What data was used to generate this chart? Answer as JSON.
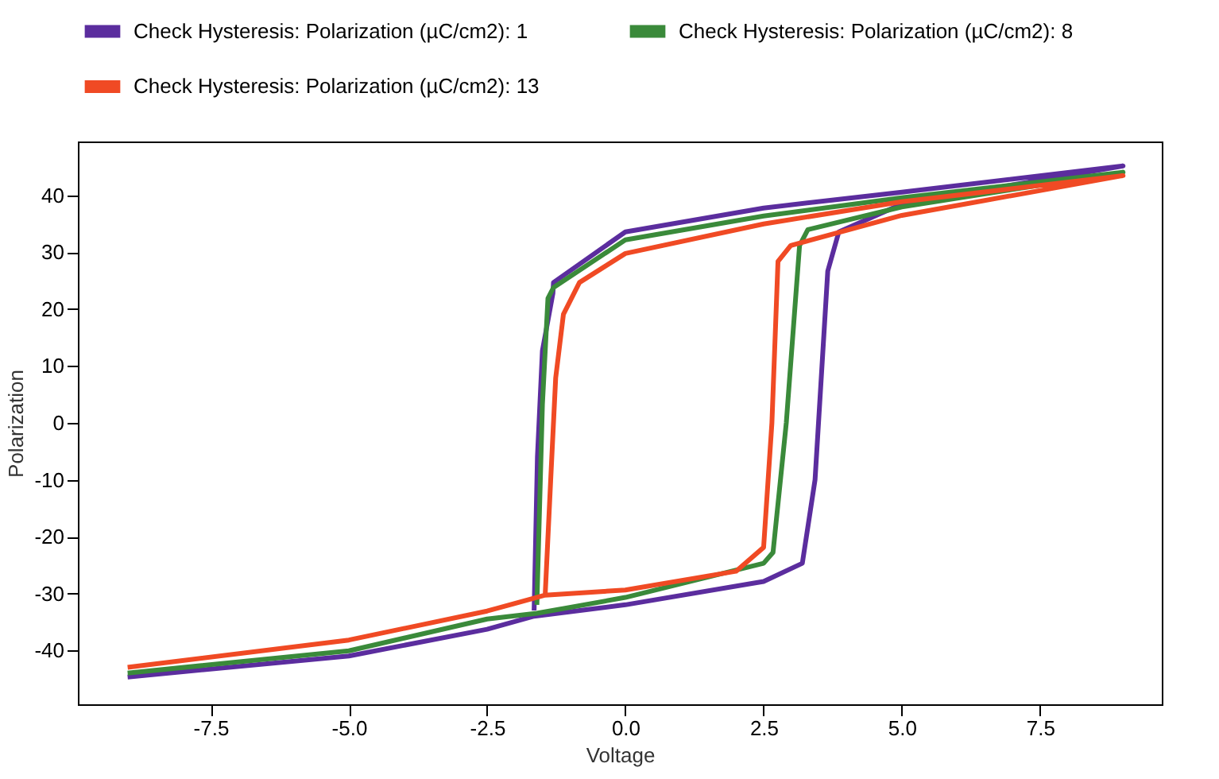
{
  "chart_data": {
    "type": "line",
    "xlabel": "Voltage",
    "ylabel": "Polarization",
    "legend": "top",
    "grid": false,
    "xlim": [
      -9.9,
      9.7
    ],
    "ylim": [
      -49.5,
      49.5
    ],
    "xticks": [
      {
        "value": -7.5,
        "label": "-7.5"
      },
      {
        "value": -5,
        "label": "-5.0"
      },
      {
        "value": -2.5,
        "label": "-2.5"
      },
      {
        "value": 0,
        "label": "0.0"
      },
      {
        "value": 2.5,
        "label": "2.5"
      },
      {
        "value": 5,
        "label": "5.0"
      },
      {
        "value": 7.5,
        "label": "7.5"
      }
    ],
    "yticks": [
      -40,
      -30,
      -20,
      -10,
      0,
      10,
      20,
      30,
      40
    ],
    "series": [
      {
        "name": "Check Hysteresis: Polarization (µC/cm2): 1",
        "color": "#5b2d9e",
        "x": [
          -9,
          -5,
          -2.5,
          -1.65,
          0,
          2.5,
          3.2,
          3.43,
          3.66,
          3.86,
          5,
          9,
          5,
          2.5,
          0,
          -1.3,
          -1.31,
          -1.5,
          -1.59,
          -1.65
        ],
        "values": [
          -44.7,
          -41,
          -36.3,
          -34,
          -32,
          -27.9,
          -24.7,
          -10,
          26.7,
          33.6,
          38.5,
          45.2,
          40.6,
          37.8,
          33.6,
          24.7,
          22.8,
          12.7,
          -6,
          -33
        ]
      },
      {
        "name": "Check Hysteresis: Polarization (µC/cm2): 8",
        "color": "#3a8a3a",
        "x": [
          -9,
          -5,
          -2.5,
          -1.6,
          0,
          2.5,
          2.67,
          2.91,
          3.15,
          3.3,
          5,
          9,
          5,
          2.5,
          0,
          -1.3,
          -1.4,
          -1.5,
          -1.6
        ],
        "values": [
          -44,
          -40.1,
          -34.5,
          -33.5,
          -30.7,
          -24.7,
          -22.8,
          0,
          31.2,
          34,
          38,
          44.1,
          39.6,
          36.4,
          32.2,
          23.8,
          21.9,
          3.2,
          -32
        ]
      },
      {
        "name": "Check Hysteresis: Polarization (µC/cm2): 13",
        "color": "#f04a24",
        "x": [
          -9,
          -5,
          -2.5,
          -1.45,
          0,
          2,
          2.5,
          2.65,
          2.76,
          2.99,
          5,
          9,
          5,
          2.5,
          0,
          -0.83,
          -1.12,
          -1.26,
          -1.35,
          -1.45
        ],
        "values": [
          -43,
          -38.2,
          -33.1,
          -30.3,
          -29.4,
          -26.1,
          -21.9,
          0,
          28.4,
          31.2,
          36.5,
          43.5,
          38.9,
          35,
          29.8,
          24.7,
          19.1,
          7.9,
          -10,
          -30.3
        ]
      }
    ]
  }
}
